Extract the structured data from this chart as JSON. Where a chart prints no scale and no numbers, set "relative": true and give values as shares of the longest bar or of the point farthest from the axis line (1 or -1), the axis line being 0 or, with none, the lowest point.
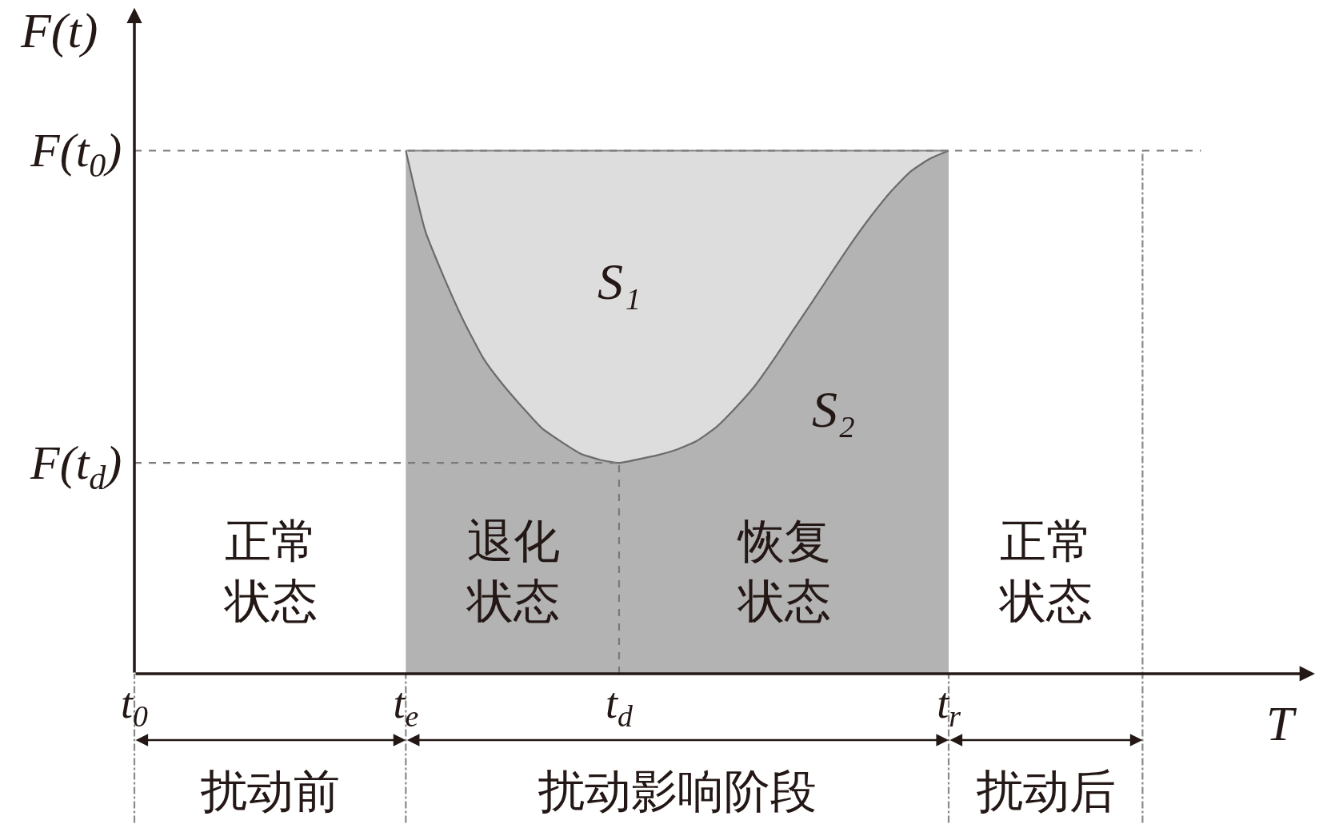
{
  "chart_data": {
    "type": "area",
    "relative": true,
    "stacked": true,
    "xlabel": "T",
    "ylabel": "F(t)",
    "categories": [
      "t$_{0}$",
      null,
      null,
      null,
      null,
      null,
      null,
      null,
      null,
      null,
      null,
      null,
      null,
      null,
      "t$_{e}$",
      null,
      null,
      null,
      null,
      null,
      null,
      null,
      null,
      null,
      null,
      "t$_{d}$",
      null,
      null,
      null,
      null,
      null,
      null,
      null,
      null,
      null,
      null,
      null,
      null,
      null,
      null,
      null,
      null,
      "t$_{r}$",
      null,
      null,
      null,
      null,
      null,
      null,
      null,
      null,
      null,
      null
    ],
    "series": [
      {
        "color": "#b3b3b3",
        "values": [
          null,
          null,
          null,
          null,
          null,
          null,
          null,
          null,
          null,
          null,
          null,
          null,
          null,
          null,
          1,
          0.847,
          0.755,
          0.673,
          0.603,
          0.553,
          0.51,
          0.47,
          0.444,
          0.421,
          0.409,
          0.403,
          0.41,
          0.418,
          0.429,
          0.445,
          0.471,
          0.508,
          0.55,
          0.602,
          0.658,
          0.713,
          0.769,
          0.824,
          0.875,
          0.921,
          0.959,
          0.984,
          1,
          null,
          null,
          null,
          null,
          null,
          null,
          null,
          null,
          null,
          null
        ]
      },
      {
        "color": "#dddddd",
        "values": [
          null,
          null,
          null,
          null,
          null,
          null,
          null,
          null,
          null,
          null,
          null,
          null,
          null,
          null,
          0,
          0.153,
          0.245,
          0.327,
          0.397,
          0.447,
          0.49,
          0.53,
          0.556,
          0.579,
          0.591,
          0.597,
          0.59,
          0.582,
          0.571,
          0.555,
          0.529,
          0.492,
          0.45,
          0.398,
          0.342,
          0.287,
          0.231,
          0.176,
          0.125,
          0.079,
          0.041,
          0.016,
          0,
          null,
          null,
          null,
          null,
          null,
          null,
          null,
          null,
          null,
          null
        ]
      }
    ],
    "ref_lines": [
      {
        "axis": "y",
        "value": 1,
        "label": "F(t$_{0}$)",
        "line_style": "dashed",
        "color": "#7a7a7a"
      },
      {
        "axis": "y",
        "value": 0.403,
        "label": "F(t$_{d}$)",
        "line_style": "dashed",
        "color": "#7a7a7a"
      },
      {
        "axis": "x",
        "value": "t$_{d}$",
        "line_style": "dashed",
        "color": "#7a7a7a"
      }
    ],
    "annotations": [
      "S₁",
      "S₂",
      "正常状态",
      "退化状态",
      "恢复状态",
      "正常状态",
      "扰动前",
      "扰动影响阶段",
      "扰动后"
    ]
  }
}
